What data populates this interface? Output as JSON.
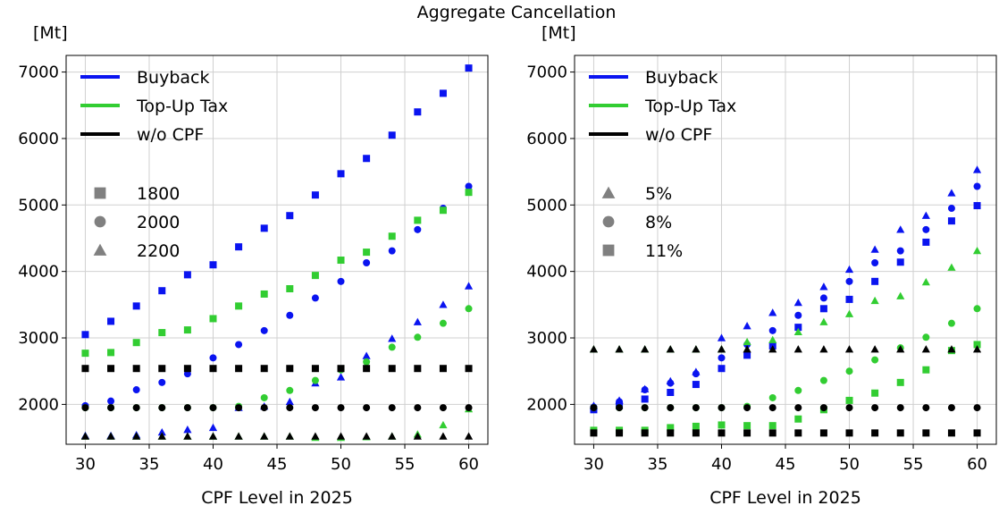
{
  "figure": {
    "title": "Aggregate Cancellation"
  },
  "colors": {
    "buyback": "#0a14f0",
    "topup": "#32cd32",
    "wocpf": "#000000",
    "marker_legend": "#808080",
    "grid": "#d0d0d0"
  },
  "chart_data": [
    {
      "type": "scatter",
      "title": "",
      "xlabel": "CPF Level in 2025",
      "ylabel": "[Mt]",
      "xlim": [
        28.5,
        61.5
      ],
      "ylim": [
        1400,
        7250
      ],
      "xticks": [
        30,
        35,
        40,
        45,
        50,
        55,
        60
      ],
      "yticks": [
        2000,
        3000,
        4000,
        5000,
        6000,
        7000
      ],
      "grid": true,
      "legend_colors": [
        {
          "label": "Buyback",
          "color_key": "buyback"
        },
        {
          "label": "Top-Up Tax",
          "color_key": "topup"
        },
        {
          "label": "w/o CPF",
          "color_key": "wocpf"
        }
      ],
      "legend_markers": [
        {
          "label": "1800",
          "marker": "square"
        },
        {
          "label": "2000",
          "marker": "circle"
        },
        {
          "label": "2200",
          "marker": "triangle"
        }
      ],
      "x": [
        30,
        32,
        34,
        36,
        38,
        40,
        42,
        44,
        46,
        48,
        50,
        52,
        54,
        56,
        58,
        60
      ],
      "series": [
        {
          "policy": "Buyback",
          "color_key": "buyback",
          "marker": "square",
          "values": [
            3050,
            3250,
            3480,
            3710,
            3950,
            4100,
            4370,
            4650,
            4840,
            5150,
            5470,
            5700,
            6050,
            6400,
            6680,
            7060
          ]
        },
        {
          "policy": "Buyback",
          "color_key": "buyback",
          "marker": "circle",
          "values": [
            1980,
            2050,
            2220,
            2330,
            2460,
            2700,
            2900,
            3110,
            3340,
            3600,
            3850,
            4130,
            4310,
            4630,
            4950,
            5280
          ]
        },
        {
          "policy": "Buyback",
          "color_key": "buyback",
          "marker": "triangle",
          "values": [
            1530,
            1530,
            1540,
            1580,
            1620,
            1650,
            1950,
            1970,
            2040,
            2320,
            2410,
            2730,
            2990,
            3240,
            3500,
            3780
          ]
        },
        {
          "policy": "Top-Up Tax",
          "color_key": "topup",
          "marker": "square",
          "values": [
            2770,
            2780,
            2930,
            3080,
            3120,
            3290,
            3480,
            3660,
            3740,
            3940,
            4170,
            4290,
            4530,
            4770,
            4920,
            5190
          ]
        },
        {
          "policy": "Top-Up Tax",
          "color_key": "topup",
          "marker": "circle",
          "values": [
            1950,
            1950,
            1950,
            1950,
            1950,
            1950,
            1970,
            2100,
            2210,
            2360,
            2520,
            2640,
            2860,
            3010,
            3220,
            3440
          ]
        },
        {
          "policy": "Top-Up Tax",
          "color_key": "topup",
          "marker": "triangle",
          "values": [
            1520,
            1520,
            1520,
            1520,
            1520,
            1520,
            1520,
            1520,
            1520,
            1500,
            1500,
            1510,
            1520,
            1550,
            1690,
            1930
          ]
        },
        {
          "policy": "w/o CPF",
          "color_key": "wocpf",
          "marker": "square",
          "values": [
            2540,
            2540,
            2540,
            2540,
            2540,
            2540,
            2540,
            2540,
            2540,
            2540,
            2540,
            2540,
            2540,
            2540,
            2540,
            2540
          ]
        },
        {
          "policy": "w/o CPF",
          "color_key": "wocpf",
          "marker": "circle",
          "values": [
            1950,
            1950,
            1950,
            1950,
            1950,
            1950,
            1950,
            1950,
            1950,
            1950,
            1950,
            1950,
            1950,
            1950,
            1950,
            1950
          ]
        },
        {
          "policy": "w/o CPF",
          "color_key": "wocpf",
          "marker": "triangle",
          "values": [
            1520,
            1520,
            1520,
            1520,
            1520,
            1520,
            1520,
            1520,
            1520,
            1520,
            1520,
            1520,
            1520,
            1520,
            1520,
            1520
          ]
        }
      ]
    },
    {
      "type": "scatter",
      "title": "",
      "xlabel": "CPF Level in 2025",
      "ylabel": "[Mt]",
      "xlim": [
        28.5,
        61.5
      ],
      "ylim": [
        1400,
        7250
      ],
      "xticks": [
        30,
        35,
        40,
        45,
        50,
        55,
        60
      ],
      "yticks": [
        2000,
        3000,
        4000,
        5000,
        6000,
        7000
      ],
      "grid": true,
      "legend_colors": [
        {
          "label": "Buyback",
          "color_key": "buyback"
        },
        {
          "label": "Top-Up Tax",
          "color_key": "topup"
        },
        {
          "label": "w/o CPF",
          "color_key": "wocpf"
        }
      ],
      "legend_markers": [
        {
          "label": "5%",
          "marker": "triangle"
        },
        {
          "label": "8%",
          "marker": "circle"
        },
        {
          "label": "11%",
          "marker": "square"
        }
      ],
      "x": [
        30,
        32,
        34,
        36,
        38,
        40,
        42,
        44,
        46,
        48,
        50,
        52,
        54,
        56,
        58,
        60
      ],
      "series": [
        {
          "policy": "Buyback",
          "color_key": "buyback",
          "marker": "triangle",
          "values": [
            1980,
            2060,
            2230,
            2350,
            2490,
            3000,
            3180,
            3380,
            3530,
            3770,
            4030,
            4330,
            4630,
            4840,
            5180,
            5530
          ]
        },
        {
          "policy": "Buyback",
          "color_key": "buyback",
          "marker": "circle",
          "values": [
            1960,
            2040,
            2220,
            2320,
            2460,
            2700,
            2900,
            3110,
            3340,
            3600,
            3850,
            4130,
            4310,
            4630,
            4950,
            5280
          ]
        },
        {
          "policy": "Buyback",
          "color_key": "buyback",
          "marker": "square",
          "values": [
            1920,
            1980,
            2080,
            2180,
            2300,
            2540,
            2740,
            2880,
            3160,
            3440,
            3580,
            3850,
            4140,
            4440,
            4760,
            4990
          ]
        },
        {
          "policy": "Top-Up Tax",
          "color_key": "topup",
          "marker": "triangle",
          "values": [
            2830,
            2830,
            2830,
            2830,
            2830,
            2830,
            2940,
            2970,
            3090,
            3240,
            3360,
            3560,
            3630,
            3840,
            4060,
            4310
          ]
        },
        {
          "policy": "Top-Up Tax",
          "color_key": "topup",
          "marker": "circle",
          "values": [
            1950,
            1950,
            1950,
            1950,
            1950,
            1950,
            1970,
            2100,
            2210,
            2360,
            2500,
            2670,
            2850,
            3010,
            3220,
            3440
          ]
        },
        {
          "policy": "Top-Up Tax",
          "color_key": "topup",
          "marker": "square",
          "values": [
            1610,
            1610,
            1610,
            1650,
            1670,
            1690,
            1680,
            1680,
            1780,
            1920,
            2060,
            2170,
            2330,
            2520,
            2810,
            2900
          ]
        },
        {
          "policy": "w/o CPF",
          "color_key": "wocpf",
          "marker": "triangle",
          "values": [
            2830,
            2830,
            2830,
            2830,
            2830,
            2830,
            2830,
            2830,
            2830,
            2830,
            2830,
            2830,
            2830,
            2830,
            2830,
            2830
          ]
        },
        {
          "policy": "w/o CPF",
          "color_key": "wocpf",
          "marker": "circle",
          "values": [
            1950,
            1950,
            1950,
            1950,
            1950,
            1950,
            1950,
            1950,
            1950,
            1950,
            1950,
            1950,
            1950,
            1950,
            1950,
            1950
          ]
        },
        {
          "policy": "w/o CPF",
          "color_key": "wocpf",
          "marker": "square",
          "values": [
            1570,
            1570,
            1570,
            1570,
            1570,
            1570,
            1570,
            1570,
            1570,
            1570,
            1570,
            1570,
            1570,
            1570,
            1570,
            1570
          ]
        }
      ]
    }
  ]
}
